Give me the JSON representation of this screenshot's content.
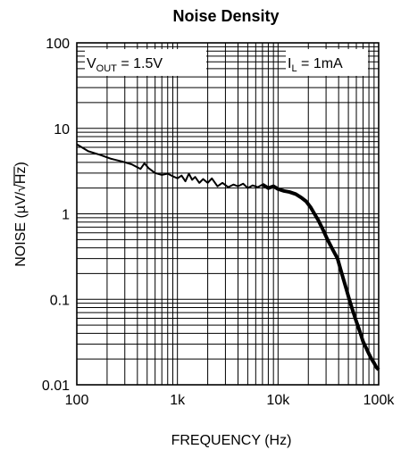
{
  "chart_data": {
    "type": "line",
    "title": "Noise Density",
    "xlabel": "FREQUENCY (Hz)",
    "ylabel_main": "NOISE (µV/",
    "ylabel_sqrt": "√",
    "ylabel_hz": "Hz",
    "ylabel_close": ")",
    "x_scale": "log",
    "y_scale": "log",
    "xlim": [
      100,
      100000
    ],
    "ylim": [
      0.01,
      100
    ],
    "x_ticks": [
      {
        "value": 100,
        "label": "100"
      },
      {
        "value": 1000,
        "label": "1k"
      },
      {
        "value": 10000,
        "label": "10k"
      },
      {
        "value": 100000,
        "label": "100k"
      }
    ],
    "y_ticks": [
      {
        "value": 0.01,
        "label": "0.01"
      },
      {
        "value": 0.1,
        "label": "0.1"
      },
      {
        "value": 1,
        "label": "1"
      },
      {
        "value": 10,
        "label": "10"
      },
      {
        "value": 100,
        "label": "100"
      }
    ],
    "grid": true,
    "annotations": {
      "vout_main": "V",
      "vout_sub": "OUT",
      "vout_rest": " = 1.5V",
      "il_main": "I",
      "il_sub": "L",
      "il_rest": " = 1mA"
    },
    "series": [
      {
        "color": "#000000",
        "x": [
          100,
          130,
          170,
          220,
          280,
          350,
          400,
          430,
          470,
          520,
          600,
          700,
          800,
          900,
          1000,
          1100,
          1200,
          1300,
          1400,
          1500,
          1650,
          1800,
          2000,
          2200,
          2500,
          2800,
          3200,
          3600,
          4000,
          4500,
          5000,
          5600,
          6300,
          7000,
          8000,
          9000,
          10000,
          11500,
          13000,
          15000,
          17000,
          19000,
          21000,
          23000,
          25000,
          28000,
          31000,
          35000,
          39000,
          43000,
          47000,
          51000,
          55000,
          60000,
          65000,
          70000,
          75000,
          80000,
          85000,
          90000,
          95000,
          100000
        ],
        "y": [
          6.5,
          5.4,
          4.9,
          4.4,
          4.1,
          3.8,
          3.5,
          3.35,
          3.9,
          3.4,
          3.0,
          2.85,
          2.95,
          2.75,
          2.6,
          2.8,
          2.4,
          2.95,
          2.5,
          2.7,
          2.3,
          2.55,
          2.3,
          2.6,
          2.1,
          2.3,
          2.05,
          2.2,
          2.1,
          2.25,
          2.0,
          2.15,
          2.05,
          2.2,
          2.0,
          2.1,
          1.95,
          1.85,
          1.8,
          1.7,
          1.55,
          1.4,
          1.2,
          1.0,
          0.85,
          0.65,
          0.5,
          0.38,
          0.3,
          0.2,
          0.14,
          0.1,
          0.075,
          0.055,
          0.042,
          0.032,
          0.027,
          0.023,
          0.02,
          0.018,
          0.016,
          0.015
        ]
      }
    ]
  }
}
